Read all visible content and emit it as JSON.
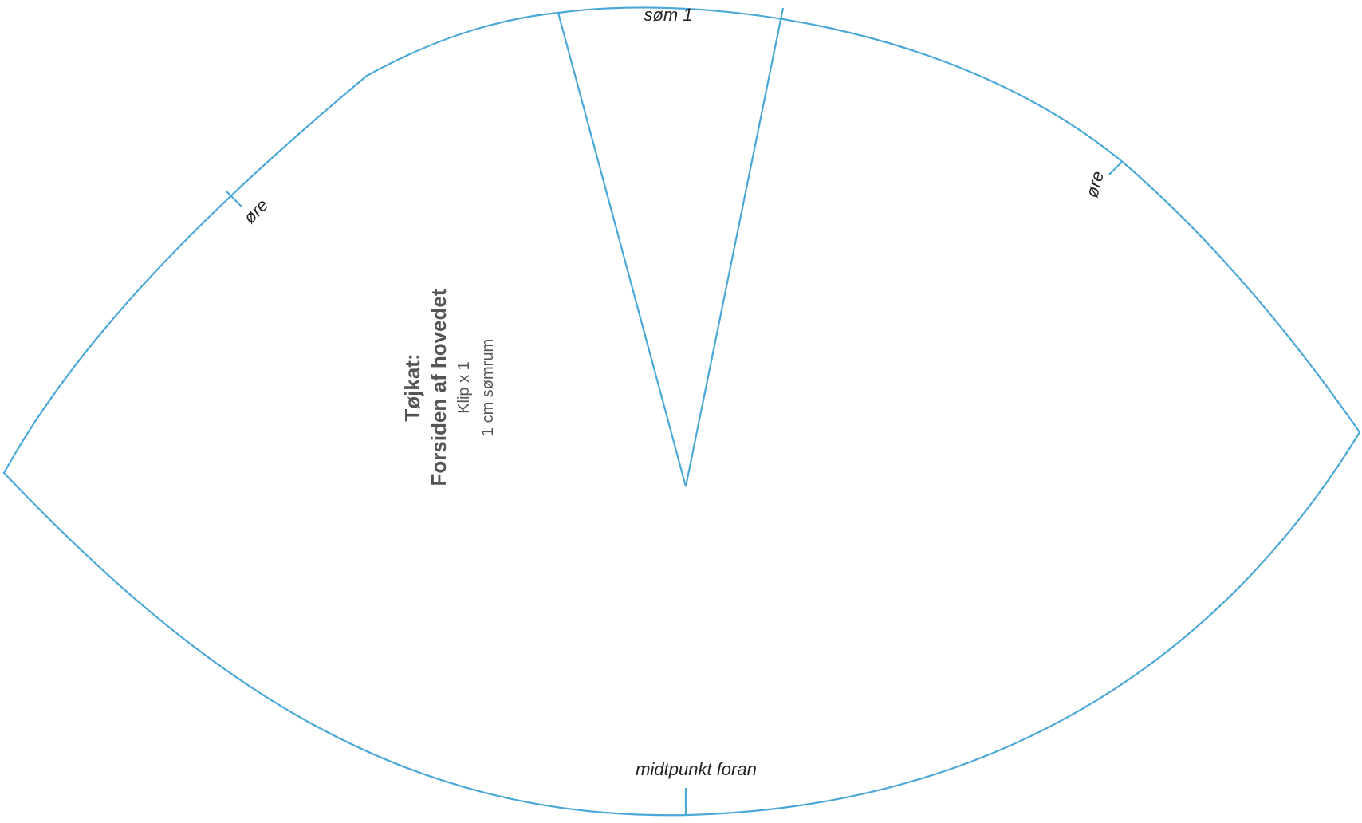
{
  "pattern": {
    "line_color": "#4aa8d8",
    "text_color": "#555555",
    "title_line1": "Tøjkat:",
    "title_line2": "Forsiden af hovedet",
    "cut_instruction": "Klip x 1",
    "seam_allowance": "1 cm sømrum"
  },
  "markers": {
    "dart_label": "søm 1",
    "ear_left_label": "øre",
    "ear_right_label": "øre",
    "center_front_label": "midtpunkt foran"
  }
}
